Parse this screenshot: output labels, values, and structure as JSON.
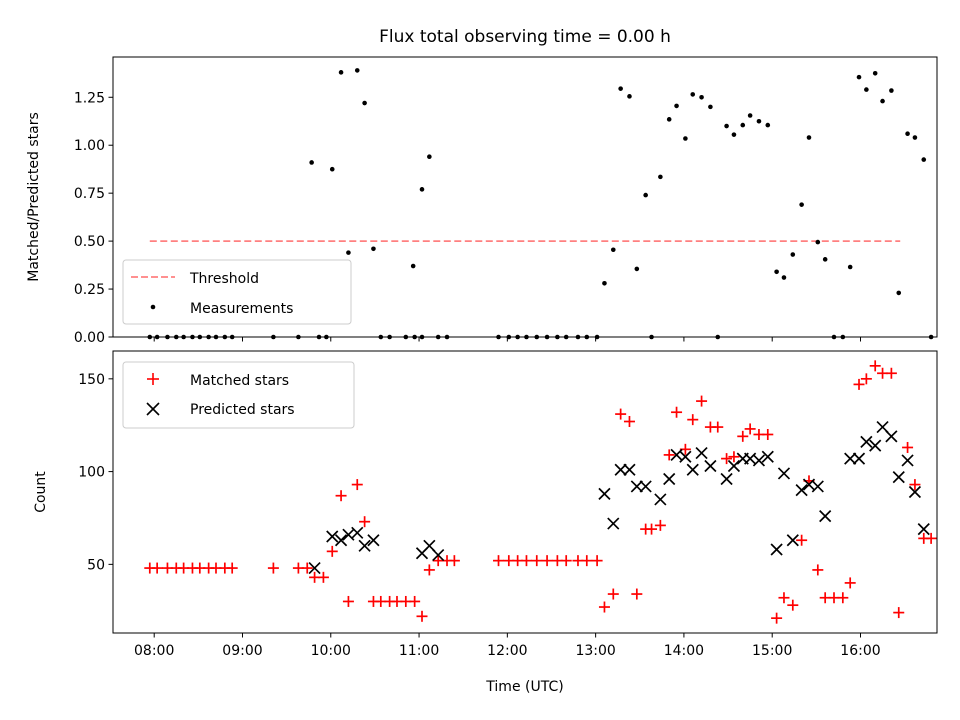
{
  "chart_data": [
    {
      "type": "scatter",
      "title": "Flux total observing time = 0.00 h",
      "xlabel": "",
      "ylabel": "Matched/Predicted stars",
      "xlim": [
        "07:32",
        "16:52"
      ],
      "ylim": [
        0,
        1.46
      ],
      "xticks": [
        "08:00",
        "09:00",
        "10:00",
        "11:00",
        "12:00",
        "13:00",
        "14:00",
        "15:00",
        "16:00"
      ],
      "yticks": [
        0.0,
        0.25,
        0.5,
        0.75,
        1.0,
        1.25
      ],
      "ytick_labels": [
        "0.00",
        "0.25",
        "0.50",
        "0.75",
        "1.00",
        "1.25"
      ],
      "legend": {
        "location": "lower-left"
      },
      "series": [
        {
          "name": "Threshold",
          "kind": "line",
          "style": "dashed",
          "color": "#ff8080",
          "x": [
            "07:57",
            "16:27"
          ],
          "y": [
            0.5,
            0.5
          ]
        },
        {
          "name": "Measurements",
          "kind": "scatter",
          "marker": "dot",
          "color": "#000000",
          "points": [
            [
              "07:57",
              0
            ],
            [
              "08:02",
              0
            ],
            [
              "08:09",
              0
            ],
            [
              "08:15",
              0
            ],
            [
              "08:20",
              0
            ],
            [
              "08:26",
              0
            ],
            [
              "08:31",
              0
            ],
            [
              "08:37",
              0
            ],
            [
              "08:42",
              0
            ],
            [
              "08:48",
              0
            ],
            [
              "08:53",
              0
            ],
            [
              "09:21",
              0
            ],
            [
              "09:38",
              0
            ],
            [
              "09:52",
              0
            ],
            [
              "09:57",
              0
            ],
            [
              "09:47",
              0.91
            ],
            [
              "10:01",
              0.875
            ],
            [
              "10:07",
              1.38
            ],
            [
              "10:12",
              0.44
            ],
            [
              "10:18",
              1.39
            ],
            [
              "10:23",
              1.22
            ],
            [
              "10:29",
              0.46
            ],
            [
              "10:34",
              0
            ],
            [
              "10:40",
              0
            ],
            [
              "10:51",
              0
            ],
            [
              "10:57",
              0
            ],
            [
              "11:02",
              0
            ],
            [
              "10:56",
              0.37
            ],
            [
              "11:02",
              0.77
            ],
            [
              "11:07",
              0.94
            ],
            [
              "11:13",
              0
            ],
            [
              "11:19",
              0
            ],
            [
              "11:54",
              0
            ],
            [
              "12:01",
              0
            ],
            [
              "12:07",
              0
            ],
            [
              "12:13",
              0
            ],
            [
              "12:20",
              0
            ],
            [
              "12:27",
              0
            ],
            [
              "12:34",
              0
            ],
            [
              "12:40",
              0
            ],
            [
              "12:48",
              0
            ],
            [
              "12:54",
              0
            ],
            [
              "13:01",
              0
            ],
            [
              "13:06",
              0.28
            ],
            [
              "13:12",
              0.455
            ],
            [
              "13:17",
              1.295
            ],
            [
              "13:23",
              1.255
            ],
            [
              "13:28",
              0.355
            ],
            [
              "13:34",
              0.74
            ],
            [
              "13:38",
              0
            ],
            [
              "13:44",
              0.835
            ],
            [
              "13:50",
              1.135
            ],
            [
              "13:55",
              1.205
            ],
            [
              "14:01",
              1.035
            ],
            [
              "14:06",
              1.265
            ],
            [
              "14:12",
              1.25
            ],
            [
              "14:18",
              1.2
            ],
            [
              "14:23",
              0
            ],
            [
              "14:29",
              1.1
            ],
            [
              "14:34",
              1.055
            ],
            [
              "14:40",
              1.105
            ],
            [
              "14:45",
              1.155
            ],
            [
              "14:51",
              1.125
            ],
            [
              "14:57",
              1.105
            ],
            [
              "15:03",
              0.34
            ],
            [
              "15:08",
              0.31
            ],
            [
              "15:14",
              0.43
            ],
            [
              "15:20",
              0.69
            ],
            [
              "15:25",
              1.04
            ],
            [
              "15:31",
              0.495
            ],
            [
              "15:36",
              0.405
            ],
            [
              "15:42",
              0
            ],
            [
              "15:48",
              0
            ],
            [
              "15:53",
              0.365
            ],
            [
              "15:59",
              1.355
            ],
            [
              "16:04",
              1.29
            ],
            [
              "16:10",
              1.375
            ],
            [
              "16:15",
              1.23
            ],
            [
              "16:21",
              1.285
            ],
            [
              "16:26",
              0.23
            ],
            [
              "16:32",
              1.06
            ],
            [
              "16:37",
              1.04
            ],
            [
              "16:43",
              0.925
            ],
            [
              "16:48",
              0
            ]
          ]
        }
      ]
    },
    {
      "type": "scatter",
      "title": "",
      "xlabel": "Time (UTC)",
      "ylabel": "Count",
      "xlim": [
        "07:32",
        "16:52"
      ],
      "ylim": [
        13,
        165
      ],
      "xticks": [
        "08:00",
        "09:00",
        "10:00",
        "11:00",
        "12:00",
        "13:00",
        "14:00",
        "15:00",
        "16:00"
      ],
      "yticks": [
        50,
        100,
        150
      ],
      "ytick_labels": [
        "50",
        "100",
        "150"
      ],
      "legend": {
        "location": "upper-left"
      },
      "series": [
        {
          "name": "Matched stars",
          "kind": "scatter",
          "marker": "plus",
          "color": "#ff0000",
          "points": [
            [
              "07:57",
              48
            ],
            [
              "08:02",
              48
            ],
            [
              "08:09",
              48
            ],
            [
              "08:15",
              48
            ],
            [
              "08:20",
              48
            ],
            [
              "08:26",
              48
            ],
            [
              "08:31",
              48
            ],
            [
              "08:37",
              48
            ],
            [
              "08:42",
              48
            ],
            [
              "08:48",
              48
            ],
            [
              "08:53",
              48
            ],
            [
              "09:21",
              48
            ],
            [
              "09:38",
              48
            ],
            [
              "09:44",
              48
            ],
            [
              "09:49",
              43
            ],
            [
              "09:55",
              43
            ],
            [
              "10:01",
              57
            ],
            [
              "10:07",
              87
            ],
            [
              "10:12",
              30
            ],
            [
              "10:18",
              93
            ],
            [
              "10:23",
              73
            ],
            [
              "10:29",
              30
            ],
            [
              "10:34",
              30
            ],
            [
              "10:40",
              30
            ],
            [
              "10:45",
              30
            ],
            [
              "10:51",
              30
            ],
            [
              "10:57",
              30
            ],
            [
              "11:02",
              22
            ],
            [
              "11:07",
              47
            ],
            [
              "11:13",
              52
            ],
            [
              "11:19",
              52
            ],
            [
              "11:24",
              52
            ],
            [
              "11:54",
              52
            ],
            [
              "12:01",
              52
            ],
            [
              "12:07",
              52
            ],
            [
              "12:13",
              52
            ],
            [
              "12:20",
              52
            ],
            [
              "12:27",
              52
            ],
            [
              "12:34",
              52
            ],
            [
              "12:40",
              52
            ],
            [
              "12:48",
              52
            ],
            [
              "12:54",
              52
            ],
            [
              "13:01",
              52
            ],
            [
              "13:06",
              27
            ],
            [
              "13:12",
              34
            ],
            [
              "13:17",
              131
            ],
            [
              "13:23",
              127
            ],
            [
              "13:28",
              34
            ],
            [
              "13:34",
              69
            ],
            [
              "13:38",
              69
            ],
            [
              "13:44",
              71
            ],
            [
              "13:50",
              109
            ],
            [
              "13:55",
              132
            ],
            [
              "14:01",
              112
            ],
            [
              "14:06",
              128
            ],
            [
              "14:12",
              138
            ],
            [
              "14:18",
              124
            ],
            [
              "14:23",
              124
            ],
            [
              "14:29",
              107
            ],
            [
              "14:34",
              108
            ],
            [
              "14:40",
              119
            ],
            [
              "14:45",
              123
            ],
            [
              "14:51",
              120
            ],
            [
              "14:57",
              120
            ],
            [
              "15:03",
              21
            ],
            [
              "15:08",
              32
            ],
            [
              "15:14",
              28
            ],
            [
              "15:20",
              63
            ],
            [
              "15:25",
              95
            ],
            [
              "15:31",
              47
            ],
            [
              "15:36",
              32
            ],
            [
              "15:42",
              32
            ],
            [
              "15:48",
              32
            ],
            [
              "15:53",
              40
            ],
            [
              "15:59",
              147
            ],
            [
              "16:04",
              150
            ],
            [
              "16:10",
              157
            ],
            [
              "16:15",
              153
            ],
            [
              "16:21",
              153
            ],
            [
              "16:26",
              24
            ],
            [
              "16:32",
              113
            ],
            [
              "16:37",
              93
            ],
            [
              "16:43",
              64
            ],
            [
              "16:48",
              64
            ]
          ]
        },
        {
          "name": "Predicted stars",
          "kind": "scatter",
          "marker": "x",
          "color": "#000000",
          "points": [
            [
              "09:49",
              48
            ],
            [
              "10:01",
              65
            ],
            [
              "10:07",
              63
            ],
            [
              "10:12",
              66
            ],
            [
              "10:18",
              67
            ],
            [
              "10:23",
              60
            ],
            [
              "10:29",
              63
            ],
            [
              "11:02",
              56
            ],
            [
              "11:07",
              60
            ],
            [
              "11:13",
              55
            ],
            [
              "13:06",
              88
            ],
            [
              "13:12",
              72
            ],
            [
              "13:17",
              101
            ],
            [
              "13:23",
              101
            ],
            [
              "13:28",
              92
            ],
            [
              "13:34",
              92
            ],
            [
              "13:44",
              85
            ],
            [
              "13:50",
              96
            ],
            [
              "13:55",
              109
            ],
            [
              "14:01",
              108
            ],
            [
              "14:06",
              101
            ],
            [
              "14:12",
              110
            ],
            [
              "14:18",
              103
            ],
            [
              "14:29",
              96
            ],
            [
              "14:34",
              103
            ],
            [
              "14:40",
              107
            ],
            [
              "14:45",
              107
            ],
            [
              "14:51",
              106
            ],
            [
              "14:57",
              108
            ],
            [
              "15:03",
              58
            ],
            [
              "15:08",
              99
            ],
            [
              "15:14",
              63
            ],
            [
              "15:20",
              90
            ],
            [
              "15:25",
              93
            ],
            [
              "15:31",
              92
            ],
            [
              "15:36",
              76
            ],
            [
              "15:53",
              107
            ],
            [
              "15:59",
              107
            ],
            [
              "16:04",
              116
            ],
            [
              "16:10",
              114
            ],
            [
              "16:15",
              124
            ],
            [
              "16:21",
              119
            ],
            [
              "16:26",
              97
            ],
            [
              "16:32",
              106
            ],
            [
              "16:37",
              89
            ],
            [
              "16:43",
              69
            ]
          ]
        }
      ]
    }
  ]
}
